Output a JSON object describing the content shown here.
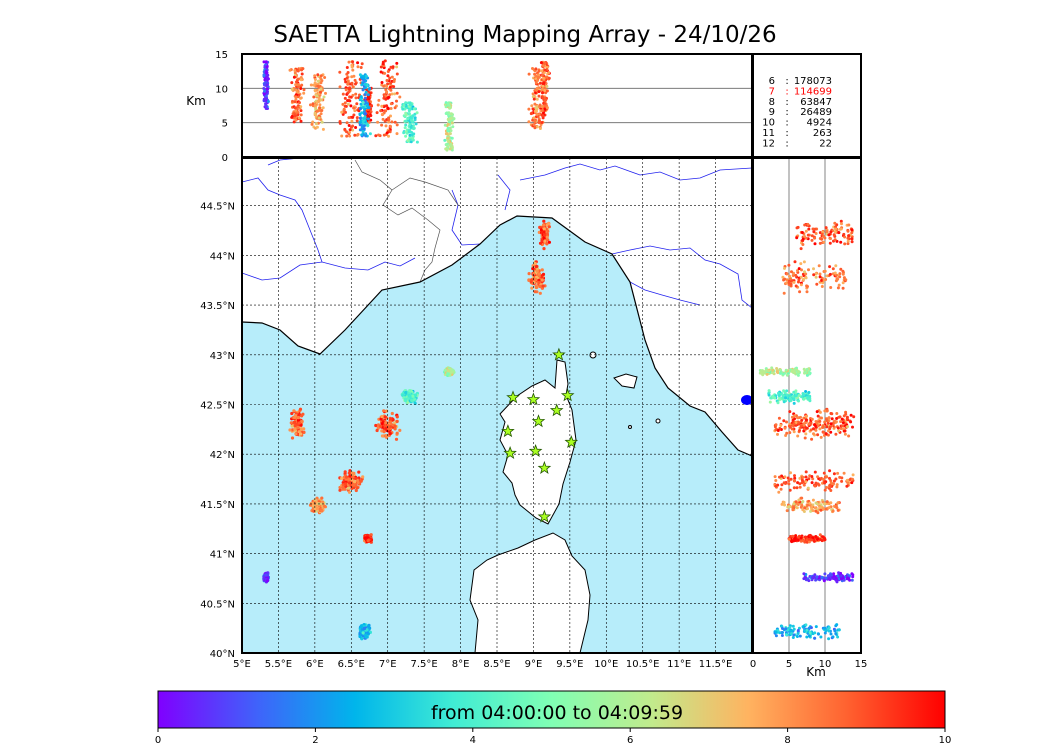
{
  "title": "SAETTA Lightning Mapping Array - 24/10/26",
  "chart_data": {
    "type": "scatter",
    "title": "SAETTA Lightning Mapping Array - 24/10/26",
    "map": {
      "lon_range": [
        5,
        12
      ],
      "lat_range": [
        40,
        44.98
      ],
      "x_ticks": [
        "5°E",
        "5.5°E",
        "6°E",
        "6.5°E",
        "7°E",
        "7.5°E",
        "8°E",
        "8.5°E",
        "9°E",
        "9.5°E",
        "10°E",
        "10.5°E",
        "11°E",
        "11.5°E"
      ],
      "y_ticks": [
        "40°N",
        "40.5°N",
        "41°N",
        "41.5°N",
        "42°N",
        "42.5°N",
        "43°N",
        "43.5°N",
        "44°N",
        "44.5°N"
      ],
      "sea_color": "#b7edfa",
      "grid": true
    },
    "altitude_panel": {
      "ylabel": "Km",
      "ylim": [
        0,
        15
      ],
      "y_ticks": [
        "0",
        "5",
        "10",
        "15"
      ]
    },
    "side_panel": {
      "xlabel": "Km",
      "xlim": [
        0,
        15
      ],
      "x_ticks": [
        "0",
        "5",
        "10",
        "15"
      ]
    },
    "station_counts": [
      {
        "stations": "6",
        "count": "178073",
        "color": "#000000"
      },
      {
        "stations": "7",
        "count": "114699",
        "color": "#ff0000"
      },
      {
        "stations": "8",
        "count": "63847",
        "color": "#000000"
      },
      {
        "stations": "9",
        "count": "26489",
        "color": "#000000"
      },
      {
        "stations": "10",
        "count": "4924",
        "color": "#000000"
      },
      {
        "stations": "11",
        "count": "263",
        "color": "#000000"
      },
      {
        "stations": "12",
        "count": "22",
        "color": "#000000"
      }
    ],
    "stations": [
      {
        "lon": 9.35,
        "lat": 43.0
      },
      {
        "lon": 8.72,
        "lat": 42.57
      },
      {
        "lon": 9.0,
        "lat": 42.55
      },
      {
        "lon": 9.47,
        "lat": 42.59
      },
      {
        "lon": 9.32,
        "lat": 42.44
      },
      {
        "lon": 9.07,
        "lat": 42.33
      },
      {
        "lon": 8.65,
        "lat": 42.23
      },
      {
        "lon": 9.52,
        "lat": 42.12
      },
      {
        "lon": 8.68,
        "lat": 42.01
      },
      {
        "lon": 9.03,
        "lat": 42.03
      },
      {
        "lon": 9.15,
        "lat": 41.86
      },
      {
        "lon": 9.15,
        "lat": 41.37
      }
    ],
    "clusters": [
      {
        "lon": 9.15,
        "lat": 44.22,
        "rlon": 0.09,
        "rlat": 0.16,
        "zmin": 6,
        "zmax": 14,
        "time": 8.8
      },
      {
        "lon": 9.05,
        "lat": 43.78,
        "rlon": 0.13,
        "rlat": 0.2,
        "zmin": 4,
        "zmax": 13,
        "time": 8.4
      },
      {
        "lon": 5.75,
        "lat": 42.3,
        "rlon": 0.12,
        "rlat": 0.2,
        "zmin": 5,
        "zmax": 13,
        "time": 8.7
      },
      {
        "lon": 7.0,
        "lat": 42.3,
        "rlon": 0.2,
        "rlat": 0.18,
        "zmin": 3,
        "zmax": 14,
        "time": 8.9
      },
      {
        "lon": 7.3,
        "lat": 42.58,
        "rlon": 0.13,
        "rlat": 0.08,
        "zmin": 2,
        "zmax": 8,
        "time": 4.2
      },
      {
        "lon": 6.5,
        "lat": 41.73,
        "rlon": 0.2,
        "rlat": 0.13,
        "zmin": 3,
        "zmax": 14,
        "time": 8.8
      },
      {
        "lon": 6.05,
        "lat": 41.48,
        "rlon": 0.12,
        "rlat": 0.09,
        "zmin": 4,
        "zmax": 12,
        "time": 7.8
      },
      {
        "lon": 7.85,
        "lat": 42.83,
        "rlon": 0.08,
        "rlat": 0.05,
        "zmin": 1,
        "zmax": 8,
        "time": 5.8
      },
      {
        "lon": 6.73,
        "lat": 41.15,
        "rlon": 0.07,
        "rlat": 0.05,
        "zmin": 5,
        "zmax": 10,
        "time": 9.3
      },
      {
        "lon": 6.68,
        "lat": 40.22,
        "rlon": 0.1,
        "rlat": 0.1,
        "zmin": 3,
        "zmax": 12,
        "time": 2.5
      },
      {
        "lon": 5.33,
        "lat": 40.76,
        "rlon": 0.05,
        "rlat": 0.06,
        "zmin": 7,
        "zmax": 14,
        "time": 0.6
      }
    ],
    "colorbar": {
      "label": "from 04:00:00 to 04:09:59",
      "range": [
        0,
        10
      ],
      "ticks": [
        "0",
        "2",
        "4",
        "6",
        "8",
        "10"
      ],
      "colormap": "rainbow"
    }
  }
}
